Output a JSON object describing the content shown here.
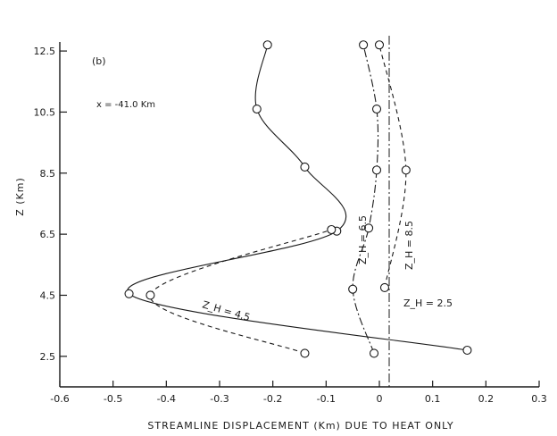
{
  "chart_data": {
    "type": "line",
    "panel_label": "(b)",
    "annotation": "x = -41.0 Km",
    "xlabel": "STREAMLINE DISPLACEMENT (Km) DUE TO HEAT ONLY",
    "ylabel": "Z (Km)",
    "xlim": [
      -0.6,
      0.3
    ],
    "ylim": [
      1.5,
      13.0
    ],
    "x_ticks": [
      -0.6,
      -0.5,
      -0.4,
      -0.3,
      -0.2,
      -0.1,
      0,
      0.1,
      0.2,
      0.3
    ],
    "x_tick_labels": [
      "-0.6",
      "-0.5",
      "-0.4",
      "-0.3",
      "-0.2",
      "-0.1",
      "0",
      "0.1",
      "0.2",
      "0.3"
    ],
    "y_ticks": [
      2.5,
      4.5,
      6.5,
      8.5,
      10.5,
      12.5
    ],
    "y_tick_labels": [
      "2.5",
      "4.5",
      "6.5",
      "8.5",
      "10.5",
      "12.5"
    ],
    "grid": false,
    "legend": "none",
    "series": [
      {
        "name": "Z_H = 2.5",
        "line_style": "solid",
        "points": [
          {
            "x": 0.165,
            "y": 2.7
          },
          {
            "x": -0.47,
            "y": 4.55
          },
          {
            "x": -0.08,
            "y": 6.6
          },
          {
            "x": -0.14,
            "y": 8.7
          },
          {
            "x": -0.23,
            "y": 10.6
          },
          {
            "x": -0.21,
            "y": 12.7
          }
        ]
      },
      {
        "name": "Z_H = 4.5",
        "line_style": "dashed",
        "points": [
          {
            "x": -0.14,
            "y": 2.6
          },
          {
            "x": -0.43,
            "y": 4.5
          },
          {
            "x": -0.09,
            "y": 6.65
          }
        ]
      },
      {
        "name": "Z_H = 6.5",
        "line_style": "dash-dot",
        "points": [
          {
            "x": -0.01,
            "y": 2.6
          },
          {
            "x": -0.05,
            "y": 4.7
          },
          {
            "x": -0.02,
            "y": 6.7
          },
          {
            "x": -0.005,
            "y": 8.6
          },
          {
            "x": -0.005,
            "y": 10.6
          },
          {
            "x": -0.03,
            "y": 12.7
          }
        ]
      },
      {
        "name": "Z_H = 8.5",
        "line_style": "dashed",
        "points": [
          {
            "x": 0.01,
            "y": 4.75
          },
          {
            "x": 0.05,
            "y": 8.6
          },
          {
            "x": 0.0,
            "y": 12.7
          }
        ]
      }
    ],
    "labels": {
      "zh25": "Z_H = 2.5",
      "zh45": "Z_H = 4.5",
      "zh65": "Z_H = 6.5",
      "zh85": "Z_H = 8.5"
    }
  }
}
